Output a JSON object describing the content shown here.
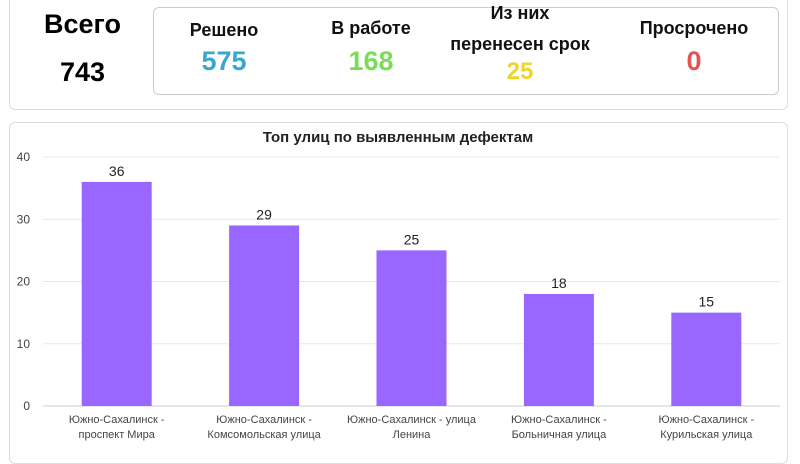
{
  "summary": {
    "total": {
      "label": "Всего",
      "value": "743"
    },
    "resolved": {
      "label": "Решено",
      "value": "575",
      "color": "#3ba7cc"
    },
    "in_progress": {
      "label": "В работе",
      "value": "168",
      "color": "#79dd57"
    },
    "postponed": {
      "label_line1": "Из них",
      "label_line2": "перенесен срок",
      "value": "25",
      "color": "#f0d42c"
    },
    "overdue": {
      "label": "Просрочено",
      "value": "0",
      "color": "#e05656"
    }
  },
  "chart_data": {
    "type": "bar",
    "title": "Топ улиц по выявленным дефектам",
    "categories": [
      [
        "Южно-Сахалинск -",
        "проспект Мира"
      ],
      [
        "Южно-Сахалинск -",
        "Комсомольская улица"
      ],
      [
        "Южно-Сахалинск - улица",
        "Ленина"
      ],
      [
        "Южно-Сахалинск -",
        "Больничная улица"
      ],
      [
        "Южно-Сахалинск -",
        "Курильская улица"
      ]
    ],
    "values": [
      36,
      29,
      25,
      18,
      15
    ],
    "ylim": [
      0,
      40
    ],
    "yticks": [
      0,
      10,
      20,
      30,
      40
    ],
    "grid": true,
    "bar_color": "#9966ff"
  }
}
